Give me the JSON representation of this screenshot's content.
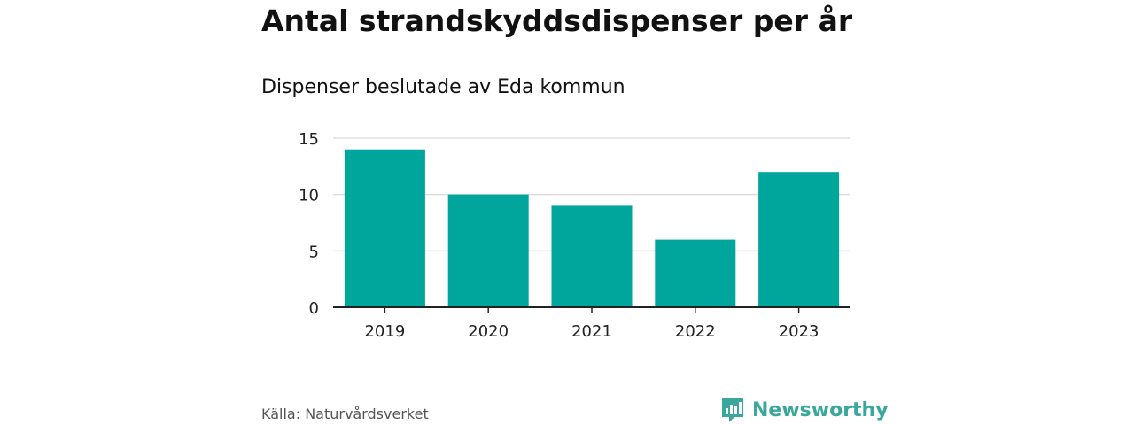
{
  "title": "Antal strandskyddsdispenser per år",
  "subtitle": "Dispenser beslutade av Eda kommun",
  "source": "Källa: Naturvårdsverket",
  "brand": {
    "name": "Newsworthy",
    "icon": "bar-chart-logo-icon",
    "color": "#3aa79c"
  },
  "colors": {
    "bar": "#00a59b",
    "grid": "#dddddd",
    "axis": "#222222"
  },
  "chart_data": {
    "type": "bar",
    "categories": [
      "2019",
      "2020",
      "2021",
      "2022",
      "2023"
    ],
    "values": [
      14,
      10,
      9,
      6,
      12
    ],
    "ylim": [
      0,
      15
    ],
    "yticks": [
      0,
      5,
      10,
      15
    ],
    "grid": true,
    "xlabel": "",
    "ylabel": ""
  }
}
